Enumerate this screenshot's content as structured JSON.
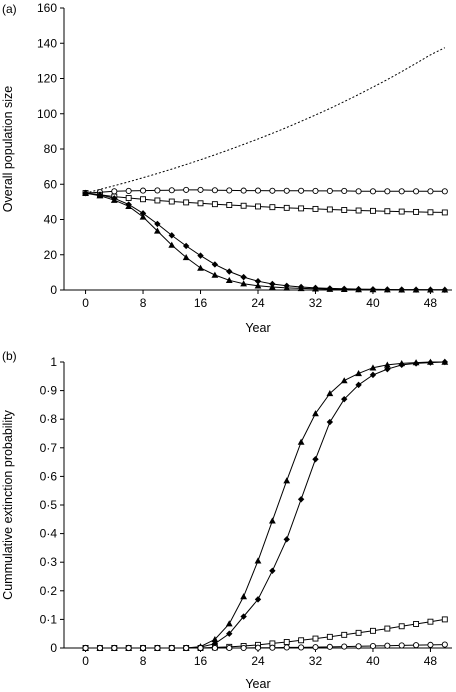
{
  "chart_data": [
    {
      "panel_label": "(a)",
      "type": "line",
      "title": "",
      "xlabel": "Year",
      "ylabel": "Overall population size",
      "xlim": [
        -3,
        51
      ],
      "ylim": [
        0,
        160
      ],
      "xticks": [
        0,
        8,
        16,
        24,
        32,
        40,
        48
      ],
      "yticks": [
        0,
        20,
        40,
        60,
        80,
        100,
        120,
        140,
        160
      ],
      "ytick_labels": [
        "0",
        "20",
        "40",
        "60",
        "80",
        "100",
        "120",
        "140",
        "160"
      ],
      "x": [
        0,
        2,
        4,
        6,
        8,
        10,
        12,
        14,
        16,
        18,
        20,
        22,
        24,
        26,
        28,
        30,
        32,
        34,
        36,
        38,
        40,
        42,
        44,
        46,
        48,
        50
      ],
      "series": [
        {
          "marker": "none",
          "line": "dotted",
          "values": [
            55,
            57.1,
            59.2,
            61.4,
            63.7,
            66.1,
            68.6,
            71.2,
            73.9,
            76.7,
            79.6,
            82.6,
            85.7,
            88.9,
            92.2,
            95.7,
            99.3,
            103.0,
            106.9,
            110.9,
            115.1,
            119.4,
            123.9,
            128.6,
            133.4,
            137.5
          ]
        },
        {
          "marker": "circle",
          "line": "solid",
          "values": [
            55,
            55.5,
            56,
            56.2,
            56.4,
            56.5,
            56.6,
            56.8,
            56.8,
            56.6,
            56.5,
            56.4,
            56.4,
            56.3,
            56.3,
            56.3,
            56.2,
            56.2,
            56.2,
            56.0,
            56.0,
            56.0,
            56.0,
            56.0,
            56.0,
            56.0
          ]
        },
        {
          "marker": "square",
          "line": "solid",
          "values": [
            55,
            54,
            53,
            52.2,
            51.5,
            50.8,
            50.2,
            49.7,
            49.2,
            48.7,
            48.2,
            47.8,
            47.4,
            47.0,
            46.6,
            46.3,
            46.0,
            45.7,
            45.4,
            45.1,
            44.9,
            44.7,
            44.5,
            44.3,
            44.1,
            44.0
          ]
        },
        {
          "marker": "diamond",
          "line": "solid",
          "values": [
            55,
            54,
            52,
            48.5,
            43.5,
            37.5,
            31,
            25,
            19.5,
            14.5,
            10.5,
            7.3,
            5.0,
            3.4,
            2.4,
            1.7,
            1.2,
            0.9,
            0.7,
            0.5,
            0.4,
            0.3,
            0.25,
            0.2,
            0.15,
            0.1
          ]
        },
        {
          "marker": "triangle",
          "line": "solid",
          "values": [
            55,
            53.5,
            51,
            47.5,
            41.5,
            33.5,
            25.5,
            18.5,
            12.5,
            8.5,
            5.5,
            3.6,
            2.4,
            1.7,
            1.2,
            0.9,
            0.7,
            0.5,
            0.4,
            0.3,
            0.25,
            0.2,
            0.15,
            0.12,
            0.1,
            0.1
          ]
        }
      ]
    },
    {
      "panel_label": "(b)",
      "type": "line",
      "title": "",
      "xlabel": "Year",
      "ylabel": "Cummulative extinction probability",
      "xlim": [
        -3,
        51
      ],
      "ylim": [
        0,
        1
      ],
      "xticks": [
        0,
        8,
        16,
        24,
        32,
        40,
        48
      ],
      "yticks": [
        0,
        0.1,
        0.2,
        0.3,
        0.4,
        0.5,
        0.6,
        0.7,
        0.8,
        0.9,
        1
      ],
      "ytick_labels": [
        "0",
        "0·1",
        "0·2",
        "0·3",
        "0·4",
        "0·5",
        "0·6",
        "0·7",
        "0·8",
        "0·9",
        "1"
      ],
      "x": [
        0,
        2,
        4,
        6,
        8,
        10,
        12,
        14,
        16,
        18,
        20,
        22,
        24,
        26,
        28,
        30,
        32,
        34,
        36,
        38,
        40,
        42,
        44,
        46,
        48,
        50
      ],
      "series": [
        {
          "marker": "triangle",
          "line": "solid",
          "values": [
            0,
            0,
            0,
            0,
            0,
            0,
            0,
            0,
            0.005,
            0.03,
            0.085,
            0.18,
            0.305,
            0.445,
            0.585,
            0.72,
            0.82,
            0.89,
            0.935,
            0.96,
            0.98,
            0.99,
            0.995,
            0.998,
            1.0,
            1.0
          ]
        },
        {
          "marker": "diamond",
          "line": "solid",
          "values": [
            0,
            0,
            0,
            0,
            0,
            0,
            0,
            0,
            0.003,
            0.015,
            0.05,
            0.11,
            0.17,
            0.27,
            0.38,
            0.52,
            0.66,
            0.79,
            0.87,
            0.92,
            0.955,
            0.975,
            0.99,
            0.995,
            0.998,
            1.0
          ]
        },
        {
          "marker": "square",
          "line": "solid",
          "values": [
            0,
            0,
            0,
            0,
            0,
            0,
            0,
            0,
            0,
            0.002,
            0.004,
            0.007,
            0.011,
            0.016,
            0.021,
            0.027,
            0.033,
            0.039,
            0.046,
            0.053,
            0.06,
            0.068,
            0.076,
            0.084,
            0.092,
            0.1
          ]
        },
        {
          "marker": "circle",
          "line": "solid",
          "values": [
            0,
            0,
            0,
            0,
            0,
            0,
            0,
            0,
            0,
            0,
            0,
            0,
            0.001,
            0.001,
            0.002,
            0.002,
            0.003,
            0.004,
            0.005,
            0.006,
            0.007,
            0.008,
            0.009,
            0.01,
            0.011,
            0.012
          ]
        }
      ]
    }
  ]
}
